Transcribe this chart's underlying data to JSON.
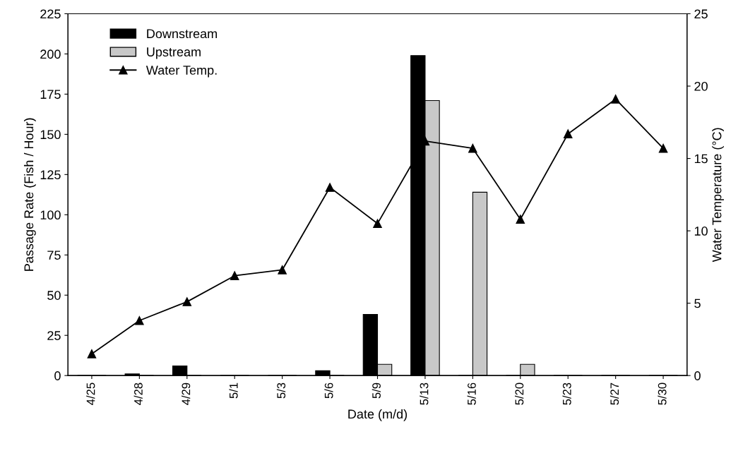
{
  "chart_data": {
    "type": "bar",
    "xlabel": "Date (m/d)",
    "ylabel": "Passage Rate (Fish / Hour)",
    "y2label": "Water Temperature (°C)",
    "categories": [
      "4/25",
      "4/28",
      "4/29",
      "5/1",
      "5/3",
      "5/6",
      "5/9",
      "5/13",
      "5/16",
      "5/20",
      "5/23",
      "5/27",
      "5/30"
    ],
    "series": [
      {
        "name": "Downstream",
        "color": "#000000",
        "values": [
          0,
          1,
          6,
          0,
          0,
          3,
          38,
          199,
          0,
          0,
          0,
          0,
          0
        ]
      },
      {
        "name": "Upstream",
        "color": "#c8c8c8",
        "values": [
          0,
          0,
          0,
          0,
          0,
          0,
          7,
          171,
          114,
          7,
          0,
          0,
          0
        ]
      },
      {
        "name": "Water Temp.",
        "type": "line",
        "axis": "y2",
        "color": "#000000",
        "marker": "triangle",
        "values": [
          1.5,
          3.8,
          5.1,
          6.9,
          7.3,
          13.0,
          10.5,
          16.2,
          15.7,
          10.8,
          16.7,
          19.1,
          15.7
        ]
      }
    ],
    "ylim": [
      0,
      225
    ],
    "yticks": [
      0,
      25,
      50,
      75,
      100,
      125,
      150,
      175,
      200,
      225
    ],
    "y2lim": [
      0,
      25
    ],
    "y2ticks": [
      0,
      5,
      10,
      15,
      20,
      25
    ],
    "grid": false,
    "legend": "top left"
  }
}
